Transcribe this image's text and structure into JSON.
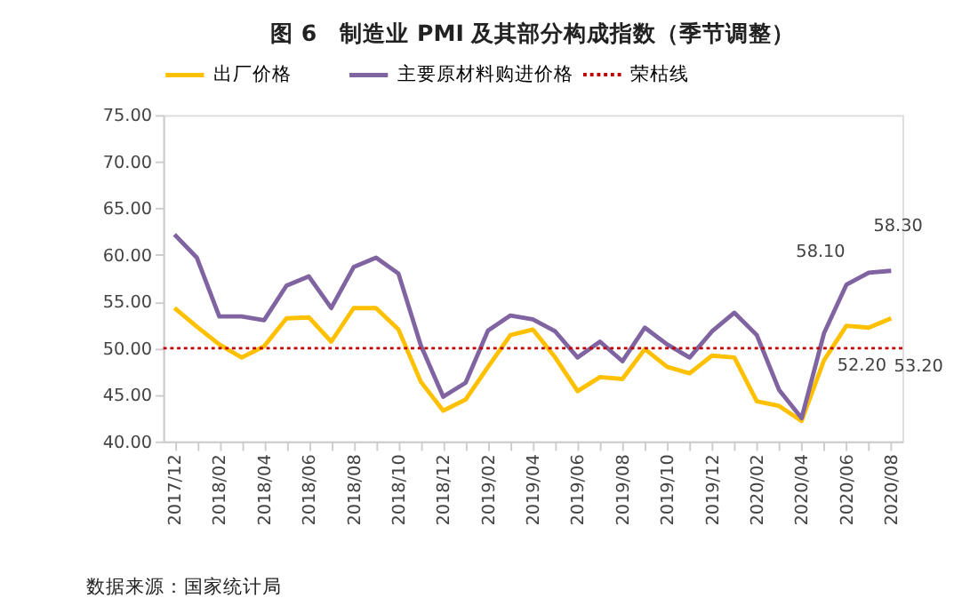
{
  "chart_data": {
    "type": "line",
    "title": "图 6　制造业 PMI 及其部分构成指数（季节调整）",
    "categories": [
      "2017/12",
      null,
      "2018/02",
      null,
      "2018/04",
      null,
      "2018/06",
      null,
      "2018/08",
      null,
      "2018/10",
      null,
      "2018/12",
      null,
      "2019/02",
      null,
      "2019/04",
      null,
      "2019/06",
      null,
      "2019/08",
      null,
      "2019/10",
      null,
      "2019/12",
      null,
      "2020/02",
      null,
      "2020/04",
      null,
      "2020/06",
      null,
      "2020/08"
    ],
    "series": [
      {
        "name": "出厂价格",
        "color": "#ffc000",
        "values": [
          54.3,
          52.3,
          50.4,
          49.0,
          50.2,
          53.2,
          53.3,
          50.7,
          54.3,
          54.3,
          52.0,
          46.4,
          43.3,
          44.5,
          48.0,
          51.4,
          52.0,
          49.0,
          45.4,
          46.9,
          46.7,
          49.9,
          48.0,
          47.3,
          49.2,
          49.0,
          44.3,
          43.8,
          42.2,
          48.7,
          52.4,
          52.2,
          53.2
        ],
        "value_labels": [
          null,
          null,
          null,
          null,
          null,
          null,
          null,
          null,
          null,
          null,
          null,
          null,
          null,
          null,
          null,
          null,
          null,
          null,
          null,
          null,
          null,
          null,
          null,
          null,
          null,
          null,
          null,
          null,
          null,
          null,
          null,
          "52.20",
          "53.20"
        ]
      },
      {
        "name": "主要原材料购进价格",
        "color": "#8064a2",
        "values": [
          62.2,
          59.7,
          53.4,
          53.4,
          53.0,
          56.7,
          57.7,
          54.3,
          58.7,
          59.7,
          58.0,
          50.3,
          44.8,
          46.3,
          51.9,
          53.5,
          53.1,
          51.8,
          49.0,
          50.7,
          48.6,
          52.2,
          50.4,
          49.0,
          51.8,
          53.8,
          51.4,
          45.5,
          42.5,
          51.6,
          56.8,
          58.1,
          58.3
        ],
        "value_labels": [
          null,
          null,
          null,
          null,
          null,
          null,
          null,
          null,
          null,
          null,
          null,
          null,
          null,
          null,
          null,
          null,
          null,
          null,
          null,
          null,
          null,
          null,
          null,
          null,
          null,
          null,
          null,
          null,
          null,
          null,
          null,
          "58.10",
          "58.30"
        ]
      }
    ],
    "ref_lines": [
      {
        "axis": "y",
        "value": 50,
        "label": "荣枯线",
        "color": "#c00000",
        "line_style": "dotted"
      }
    ],
    "ylim": [
      40,
      75
    ],
    "yticks": [
      {
        "value": 40,
        "label": "40.00"
      },
      {
        "value": 45,
        "label": "45.00"
      },
      {
        "value": 50,
        "label": "50.00"
      },
      {
        "value": 55,
        "label": "55.00"
      },
      {
        "value": 60,
        "label": "60.00"
      },
      {
        "value": 65,
        "label": "65.00"
      },
      {
        "value": 70,
        "label": "70.00"
      },
      {
        "value": 75,
        "label": "75.00"
      }
    ],
    "grid": false,
    "legend": "top",
    "marker": "none",
    "line_style": "solid",
    "annotations": [
      "数据来源：国家统计局"
    ]
  }
}
